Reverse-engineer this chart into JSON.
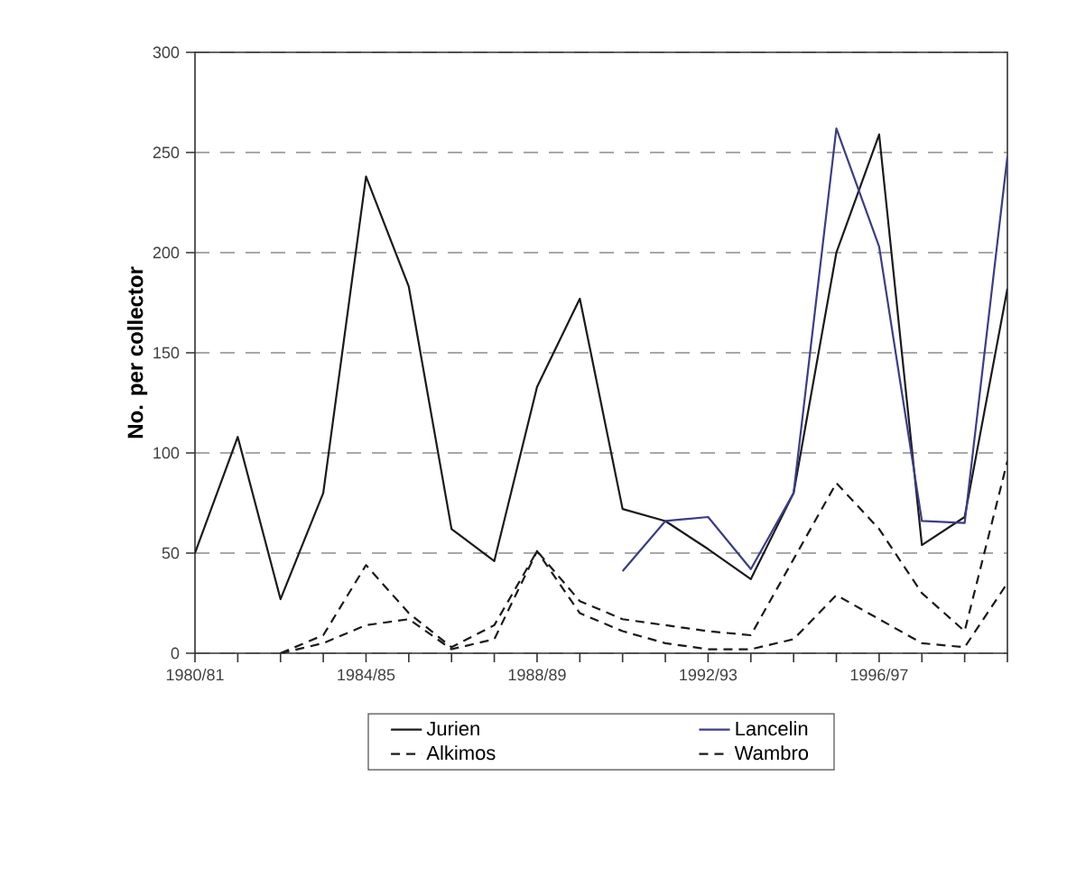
{
  "chart_data": {
    "type": "line",
    "ylabel": "No. per collector",
    "categories": [
      "1980/81",
      null,
      null,
      null,
      "1984/85",
      null,
      null,
      null,
      "1988/89",
      null,
      null,
      null,
      "1992/93",
      null,
      null,
      null,
      "1996/97",
      null,
      null,
      null
    ],
    "series": [
      {
        "name": "Jurien",
        "color": "#1a1a1a",
        "line_style": "solid",
        "values": [
          50,
          108,
          27,
          80,
          238,
          183,
          62,
          46,
          133,
          177,
          72,
          66,
          52,
          37,
          80,
          200,
          259,
          54,
          68,
          182
        ]
      },
      {
        "name": "Lancelin",
        "color": "#3c3c88",
        "line_style": "solid",
        "values": [
          null,
          null,
          null,
          null,
          null,
          null,
          null,
          null,
          null,
          null,
          41,
          66,
          68,
          42,
          80,
          262,
          203,
          66,
          65,
          248
        ]
      },
      {
        "name": "Alkimos",
        "color": "#1a1a1a",
        "line_style": "dashed",
        "values": [
          null,
          null,
          0,
          9,
          44,
          20,
          3,
          14,
          51,
          26,
          17,
          14,
          11,
          9,
          47,
          85,
          62,
          30,
          11,
          96
        ]
      },
      {
        "name": "Wambro",
        "color": "#1a1a1a",
        "line_style": "dashed",
        "values": [
          null,
          null,
          0,
          5,
          14,
          17,
          2,
          7,
          51,
          20,
          11,
          5,
          2,
          2,
          7,
          29,
          17,
          5,
          3,
          35
        ]
      }
    ],
    "ylim": [
      0,
      300
    ],
    "yticks": [
      0,
      50,
      100,
      150,
      200,
      250,
      300
    ],
    "grid": "y",
    "legend": "bottom",
    "marker": "none"
  }
}
